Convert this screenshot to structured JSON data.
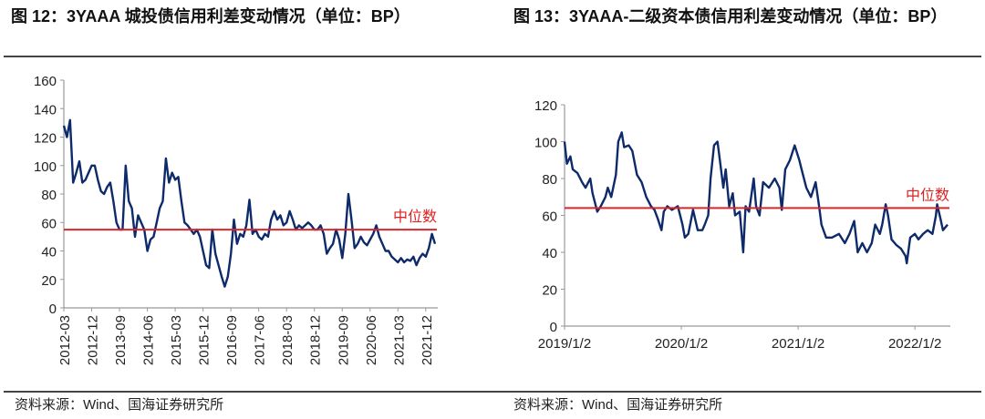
{
  "left": {
    "title": "图 12：3YAAA 城投债信用利差变动情况（单位：BP）",
    "source": "资料来源：Wind、国海证券研究所"
  },
  "right": {
    "title": "图 13：3YAAA-二级资本债信用利差变动情况（单位：BP）",
    "source": "资料来源：Wind、国海证券研究所"
  },
  "colors": {
    "line": "#0d2a6b",
    "median": "#d9262b",
    "axis": "#999999"
  },
  "chart_data": [
    {
      "type": "line",
      "title": "3YAAA 城投债信用利差变动情况（单位：BP）",
      "x_start": "2012-03",
      "x_unit": "month index (0 = 2012-03)",
      "xlim": [
        0,
        120
      ],
      "ylim": [
        0,
        160
      ],
      "yticks": [
        0,
        20,
        40,
        60,
        80,
        100,
        120,
        140,
        160
      ],
      "xtick_labels": [
        "2012-03",
        "2012-12",
        "2013-09",
        "2014-06",
        "2015-03",
        "2015-12",
        "2016-09",
        "2017-06",
        "2018-03",
        "2018-12",
        "2019-09",
        "2020-06",
        "2021-03",
        "2021-12"
      ],
      "xtick_step_months": 9,
      "median_label": "中位数",
      "median": 55,
      "series": [
        {
          "name": "3YAAA城投债信用利差",
          "values": [
            128,
            120,
            132,
            88,
            95,
            103,
            88,
            90,
            95,
            100,
            100,
            90,
            82,
            80,
            85,
            88,
            75,
            60,
            55,
            55,
            100,
            75,
            70,
            50,
            65,
            60,
            55,
            40,
            48,
            50,
            60,
            70,
            75,
            105,
            88,
            95,
            90,
            92,
            75,
            60,
            58,
            55,
            52,
            55,
            50,
            40,
            30,
            28,
            55,
            38,
            30,
            22,
            15,
            22,
            38,
            62,
            45,
            52,
            50,
            58,
            76,
            52,
            55,
            50,
            48,
            52,
            50,
            62,
            68,
            62,
            65,
            58,
            60,
            68,
            62,
            55,
            58,
            56,
            58,
            60,
            58,
            55,
            55,
            58,
            52,
            38,
            42,
            45,
            55,
            48,
            35,
            52,
            80,
            62,
            42,
            45,
            50,
            46,
            44,
            48,
            52,
            58,
            50,
            45,
            40,
            40,
            36,
            34,
            32,
            35,
            32,
            34,
            33,
            36,
            30,
            35,
            38,
            36,
            42,
            52,
            45
          ]
        }
      ],
      "grid": false,
      "legend": "none"
    },
    {
      "type": "line",
      "title": "3YAAA-二级资本债信用利差变动情况（单位：BP）",
      "x_unit": "decimal year",
      "xlim": [
        2019.0,
        2022.28
      ],
      "ylim": [
        0,
        120
      ],
      "yticks": [
        0,
        20,
        40,
        60,
        80,
        100,
        120
      ],
      "xtick_labels": [
        "2019/1/2",
        "2020/1/2",
        "2021/1/2",
        "2022/1/2"
      ],
      "xtick_values": [
        2019.0,
        2020.0,
        2021.0,
        2022.0
      ],
      "median_label": "中位数",
      "median": 64,
      "series": [
        {
          "name": "3YAAA二级资本债信用利差",
          "points": [
            [
              2019.0,
              100
            ],
            [
              2019.02,
              88
            ],
            [
              2019.05,
              92
            ],
            [
              2019.07,
              85
            ],
            [
              2019.11,
              83
            ],
            [
              2019.15,
              78
            ],
            [
              2019.18,
              75
            ],
            [
              2019.22,
              80
            ],
            [
              2019.24,
              72
            ],
            [
              2019.28,
              62
            ],
            [
              2019.31,
              65
            ],
            [
              2019.35,
              70
            ],
            [
              2019.37,
              75
            ],
            [
              2019.4,
              70
            ],
            [
              2019.44,
              82
            ],
            [
              2019.46,
              100
            ],
            [
              2019.49,
              105
            ],
            [
              2019.51,
              97
            ],
            [
              2019.55,
              98
            ],
            [
              2019.58,
              95
            ],
            [
              2019.62,
              82
            ],
            [
              2019.66,
              78
            ],
            [
              2019.7,
              70
            ],
            [
              2019.74,
              65
            ],
            [
              2019.77,
              63
            ],
            [
              2019.8,
              58
            ],
            [
              2019.83,
              52
            ],
            [
              2019.85,
              62
            ],
            [
              2019.88,
              65
            ],
            [
              2019.92,
              63
            ],
            [
              2019.97,
              65
            ],
            [
              2020.01,
              55
            ],
            [
              2020.03,
              48
            ],
            [
              2020.06,
              50
            ],
            [
              2020.1,
              63
            ],
            [
              2020.14,
              52
            ],
            [
              2020.18,
              52
            ],
            [
              2020.2,
              55
            ],
            [
              2020.23,
              60
            ],
            [
              2020.25,
              80
            ],
            [
              2020.28,
              98
            ],
            [
              2020.31,
              100
            ],
            [
              2020.33,
              90
            ],
            [
              2020.36,
              75
            ],
            [
              2020.38,
              85
            ],
            [
              2020.41,
              65
            ],
            [
              2020.44,
              72
            ],
            [
              2020.46,
              60
            ],
            [
              2020.5,
              62
            ],
            [
              2020.53,
              40
            ],
            [
              2020.55,
              65
            ],
            [
              2020.58,
              62
            ],
            [
              2020.62,
              80
            ],
            [
              2020.64,
              65
            ],
            [
              2020.67,
              60
            ],
            [
              2020.7,
              78
            ],
            [
              2020.75,
              75
            ],
            [
              2020.8,
              80
            ],
            [
              2020.84,
              75
            ],
            [
              2020.86,
              63
            ],
            [
              2020.89,
              85
            ],
            [
              2020.93,
              90
            ],
            [
              2020.97,
              98
            ],
            [
              2021.01,
              90
            ],
            [
              2021.03,
              85
            ],
            [
              2021.07,
              75
            ],
            [
              2021.11,
              70
            ],
            [
              2021.15,
              78
            ],
            [
              2021.18,
              65
            ],
            [
              2021.2,
              55
            ],
            [
              2021.24,
              48
            ],
            [
              2021.29,
              48
            ],
            [
              2021.35,
              50
            ],
            [
              2021.4,
              45
            ],
            [
              2021.44,
              50
            ],
            [
              2021.48,
              57
            ],
            [
              2021.51,
              40
            ],
            [
              2021.55,
              45
            ],
            [
              2021.59,
              40
            ],
            [
              2021.63,
              45
            ],
            [
              2021.66,
              55
            ],
            [
              2021.7,
              50
            ],
            [
              2021.72,
              55
            ],
            [
              2021.75,
              66
            ],
            [
              2021.77,
              60
            ],
            [
              2021.8,
              47
            ],
            [
              2021.84,
              44
            ],
            [
              2021.88,
              42
            ],
            [
              2021.92,
              38
            ],
            [
              2021.93,
              34
            ],
            [
              2021.96,
              48
            ],
            [
              2022.0,
              50
            ],
            [
              2022.03,
              47
            ],
            [
              2022.07,
              50
            ],
            [
              2022.11,
              52
            ],
            [
              2022.15,
              50
            ],
            [
              2022.18,
              60
            ],
            [
              2022.19,
              66
            ],
            [
              2022.22,
              58
            ],
            [
              2022.24,
              52
            ],
            [
              2022.28,
              55
            ]
          ]
        }
      ],
      "grid": false,
      "legend": "none"
    }
  ]
}
